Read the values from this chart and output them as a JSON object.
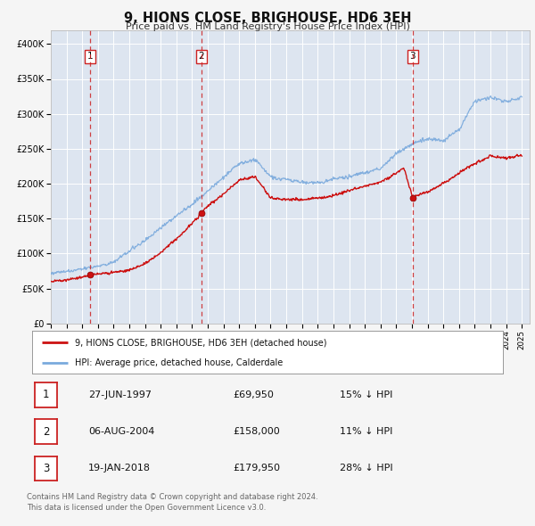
{
  "title": "9, HIONS CLOSE, BRIGHOUSE, HD6 3EH",
  "subtitle": "Price paid vs. HM Land Registry's House Price Index (HPI)",
  "fig_bg_color": "#f5f5f5",
  "plot_bg_color": "#dde5f0",
  "grid_color": "#ffffff",
  "red_line_color": "#cc1111",
  "blue_line_color": "#7aaadd",
  "sale_dot_color": "#cc1111",
  "ylim": [
    0,
    420000
  ],
  "yticks": [
    0,
    50000,
    100000,
    150000,
    200000,
    250000,
    300000,
    350000,
    400000
  ],
  "xlim_start": 1995.0,
  "xlim_end": 2025.5,
  "sales": [
    {
      "year": 1997.49,
      "price": 69950,
      "label": "1"
    },
    {
      "year": 2004.59,
      "price": 158000,
      "label": "2"
    },
    {
      "year": 2018.05,
      "price": 179950,
      "label": "3"
    }
  ],
  "legend_entries": [
    "9, HIONS CLOSE, BRIGHOUSE, HD6 3EH (detached house)",
    "HPI: Average price, detached house, Calderdale"
  ],
  "table_rows": [
    {
      "num": "1",
      "date": "27-JUN-1997",
      "price": "£69,950",
      "hpi": "15% ↓ HPI"
    },
    {
      "num": "2",
      "date": "06-AUG-2004",
      "price": "£158,000",
      "hpi": "11% ↓ HPI"
    },
    {
      "num": "3",
      "date": "19-JAN-2018",
      "price": "£179,950",
      "hpi": "28% ↓ HPI"
    }
  ],
  "footer_line1": "Contains HM Land Registry data © Crown copyright and database right 2024.",
  "footer_line2": "This data is licensed under the Open Government Licence v3.0.",
  "hpi_anchors_x": [
    1995,
    1996,
    1997,
    1998,
    1999,
    2000,
    2001,
    2002,
    2003,
    2004,
    2005,
    2006,
    2007,
    2008,
    2009,
    2010,
    2011,
    2012,
    2013,
    2014,
    2015,
    2016,
    2017,
    2018,
    2019,
    2020,
    2021,
    2022,
    2023,
    2024,
    2025
  ],
  "hpi_anchors_y": [
    72000,
    75000,
    78000,
    83000,
    90000,
    105000,
    120000,
    138000,
    155000,
    172000,
    190000,
    210000,
    228000,
    235000,
    210000,
    207000,
    204000,
    202000,
    207000,
    212000,
    218000,
    223000,
    245000,
    258000,
    265000,
    262000,
    278000,
    320000,
    325000,
    320000,
    328000
  ],
  "red_anchors_x": [
    1995,
    1996,
    1997,
    1997.49,
    1998,
    1999,
    2000,
    2001,
    2002,
    2003,
    2004,
    2004.59,
    2005,
    2006,
    2007,
    2008,
    2009,
    2010,
    2011,
    2012,
    2013,
    2014,
    2015,
    2016,
    2017,
    2017.5,
    2018.05,
    2019,
    2020,
    2021,
    2022,
    2023,
    2024,
    2025
  ],
  "red_anchors_y": [
    60000,
    63000,
    67000,
    69950,
    71000,
    73000,
    76000,
    85000,
    100000,
    120000,
    143000,
    158000,
    168000,
    185000,
    205000,
    210000,
    180000,
    178000,
    178000,
    180000,
    183000,
    190000,
    196000,
    202000,
    215000,
    222000,
    179950,
    188000,
    200000,
    215000,
    228000,
    238000,
    235000,
    240000
  ]
}
